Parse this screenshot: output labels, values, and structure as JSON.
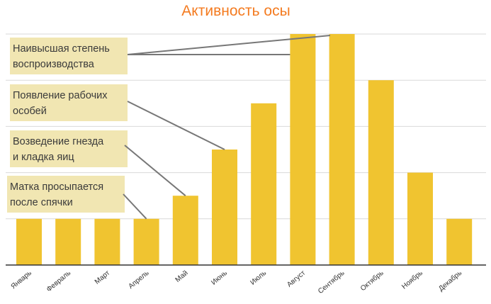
{
  "chart_data": {
    "type": "bar",
    "title": "Активность осы",
    "xlabel": "",
    "ylabel": "",
    "categories": [
      "Январь",
      "Февраль",
      "Март",
      "Апрель",
      "Май",
      "Июнь",
      "Июль",
      "Август",
      "Сентябрь",
      "Октябрь",
      "Ноябрь",
      "Декабрь"
    ],
    "values": [
      1,
      1,
      1,
      1,
      1.5,
      2.5,
      3.5,
      5,
      5,
      4,
      2,
      1
    ],
    "ylim": [
      0,
      5
    ],
    "grid": true,
    "annotations": [
      {
        "lines": [
          "Наивысшая степень",
          "воспроизводства"
        ],
        "target": "Август"
      },
      {
        "lines": [
          "Появление рабочих",
          "особей"
        ],
        "target": "Июнь"
      },
      {
        "lines": [
          "Возведение гнезда",
          "и кладка яиц"
        ],
        "target": "Май"
      },
      {
        "lines": [
          "Матка просыпается",
          "после спячки"
        ],
        "target": "Апрель"
      }
    ]
  },
  "colors": {
    "bar": "#f0c430",
    "title": "#f47b20",
    "grid": "#d9d9d9",
    "axis": "#333333",
    "annotation_box": "#f1e6b2",
    "leader": "#777777"
  }
}
